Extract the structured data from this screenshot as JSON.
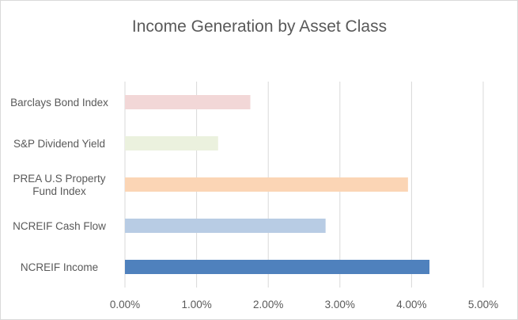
{
  "chart_data": {
    "type": "bar",
    "orientation": "horizontal",
    "title": "Income Generation by Asset Class",
    "xlabel": "",
    "ylabel": "",
    "categories": [
      "Barclays Bond Index",
      "S&P Dividend Yield",
      "PREA U.S Property Fund Index",
      "NCREIF Cash Flow",
      "NCREIF Income"
    ],
    "category_lines": [
      [
        "Barclays Bond Index"
      ],
      [
        "S&P Dividend Yield"
      ],
      [
        "PREA U.S Property",
        "Fund Index"
      ],
      [
        "NCREIF Cash Flow"
      ],
      [
        "NCREIF Income"
      ]
    ],
    "values": [
      0.0175,
      0.013,
      0.0395,
      0.028,
      0.0425
    ],
    "colors": [
      "#f2d7d7",
      "#ebf1de",
      "#fbd5b5",
      "#b8cce4",
      "#4f81bd"
    ],
    "xlim": [
      0,
      0.05
    ],
    "x_ticks": [
      0,
      0.01,
      0.02,
      0.03,
      0.04,
      0.05
    ],
    "x_tick_labels": [
      "0.00%",
      "1.00%",
      "2.00%",
      "3.00%",
      "4.00%",
      "5.00%"
    ],
    "grid": true,
    "legend": "none"
  }
}
